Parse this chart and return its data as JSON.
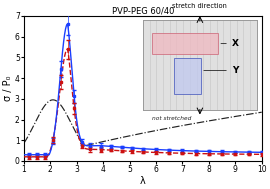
{
  "title": "PVP-PEG 60/40",
  "xlabel": "λ",
  "ylabel": "σ / P₀",
  "xlim": [
    1,
    10
  ],
  "ylim": [
    0,
    7
  ],
  "yticks": [
    0,
    1,
    2,
    3,
    4,
    5,
    6,
    7
  ],
  "xticks": [
    1,
    2,
    3,
    4,
    5,
    6,
    7,
    8,
    9,
    10
  ],
  "blue_line_color": "#1a3fff",
  "red_line_color": "#cc1111",
  "black_dash_color": "#222222",
  "inset_bg": "#e0e0e0",
  "inset_stripe_color": "#c8c8c8",
  "inset_rect_x_color": "#f0b8c0",
  "inset_rect_x_edge": "#cc6677",
  "inset_rect_y_color": "#c0c8f0",
  "inset_rect_y_edge": "#4455bb",
  "not_stretched_label": "not stretched",
  "X_label": "X",
  "Y_label": "Y",
  "stretch_direction_label": "stretch direction"
}
